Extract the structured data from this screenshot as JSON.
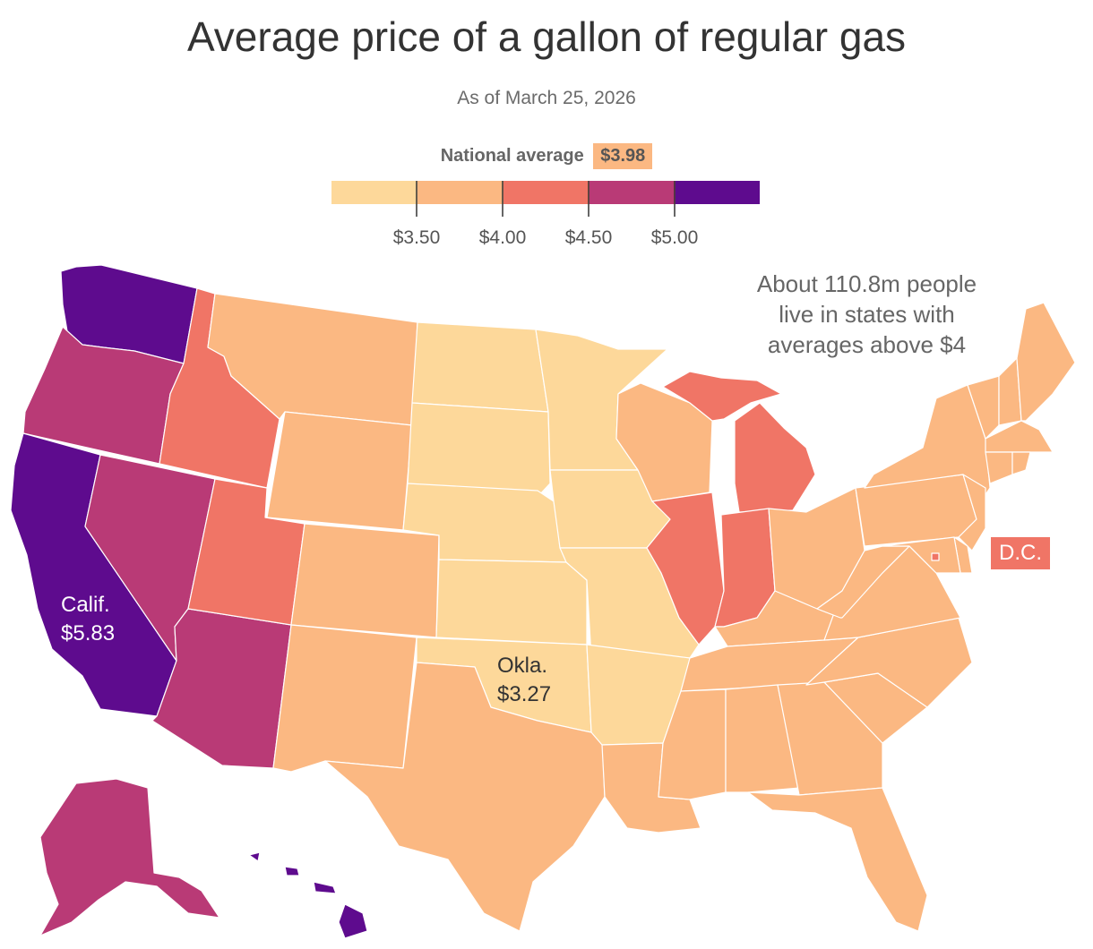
{
  "header": {
    "title": "Average price of a gallon of regular gas",
    "subtitle": "As of March 25, 2026"
  },
  "national_average": {
    "label": "National average",
    "value": "$3.98"
  },
  "legend": {
    "colors": [
      "#fdd89a",
      "#fbb882",
      "#f07566",
      "#b93a76",
      "#5e0b8e"
    ],
    "tick_labels": [
      "$3.50",
      "$4.00",
      "$4.50",
      "$5.00"
    ]
  },
  "annotation": {
    "lines": [
      "About 110.8m people",
      "live in states with",
      "averages above $4"
    ]
  },
  "callouts": {
    "california": {
      "name": "Calif.",
      "price": "$5.83"
    },
    "oklahoma": {
      "name": "Okla.",
      "price": "$3.27"
    },
    "dc": {
      "name": "D.C."
    }
  },
  "states": [
    {
      "id": "WA",
      "bucket": 4
    },
    {
      "id": "OR",
      "bucket": 3
    },
    {
      "id": "CA",
      "bucket": 4
    },
    {
      "id": "NV",
      "bucket": 3
    },
    {
      "id": "AZ",
      "bucket": 3
    },
    {
      "id": "ID",
      "bucket": 2
    },
    {
      "id": "UT",
      "bucket": 2
    },
    {
      "id": "MT",
      "bucket": 1
    },
    {
      "id": "WY",
      "bucket": 1
    },
    {
      "id": "CO",
      "bucket": 1
    },
    {
      "id": "NM",
      "bucket": 1
    },
    {
      "id": "ND",
      "bucket": 0
    },
    {
      "id": "SD",
      "bucket": 0
    },
    {
      "id": "NE",
      "bucket": 0
    },
    {
      "id": "KS",
      "bucket": 0
    },
    {
      "id": "OK",
      "bucket": 0
    },
    {
      "id": "TX",
      "bucket": 1
    },
    {
      "id": "MN",
      "bucket": 0
    },
    {
      "id": "IA",
      "bucket": 0
    },
    {
      "id": "MO",
      "bucket": 0
    },
    {
      "id": "AR",
      "bucket": 0
    },
    {
      "id": "LA",
      "bucket": 1
    },
    {
      "id": "WI",
      "bucket": 1
    },
    {
      "id": "IL",
      "bucket": 2
    },
    {
      "id": "MI",
      "bucket": 2
    },
    {
      "id": "IN",
      "bucket": 2
    },
    {
      "id": "OH",
      "bucket": 1
    },
    {
      "id": "KY",
      "bucket": 1
    },
    {
      "id": "TN",
      "bucket": 1
    },
    {
      "id": "MS",
      "bucket": 1
    },
    {
      "id": "AL",
      "bucket": 1
    },
    {
      "id": "GA",
      "bucket": 1
    },
    {
      "id": "FL",
      "bucket": 1
    },
    {
      "id": "SC",
      "bucket": 1
    },
    {
      "id": "NC",
      "bucket": 1
    },
    {
      "id": "VA",
      "bucket": 1
    },
    {
      "id": "WV",
      "bucket": 1
    },
    {
      "id": "PA",
      "bucket": 1
    },
    {
      "id": "NY",
      "bucket": 1
    },
    {
      "id": "VT",
      "bucket": 1
    },
    {
      "id": "NH",
      "bucket": 1
    },
    {
      "id": "ME",
      "bucket": 1
    },
    {
      "id": "MA",
      "bucket": 1
    },
    {
      "id": "CT",
      "bucket": 1
    },
    {
      "id": "RI",
      "bucket": 1
    },
    {
      "id": "NJ",
      "bucket": 1
    },
    {
      "id": "DE",
      "bucket": 1
    },
    {
      "id": "MD",
      "bucket": 1
    },
    {
      "id": "DC",
      "bucket": 2
    },
    {
      "id": "AK",
      "bucket": 3
    },
    {
      "id": "HI",
      "bucket": 4
    }
  ]
}
